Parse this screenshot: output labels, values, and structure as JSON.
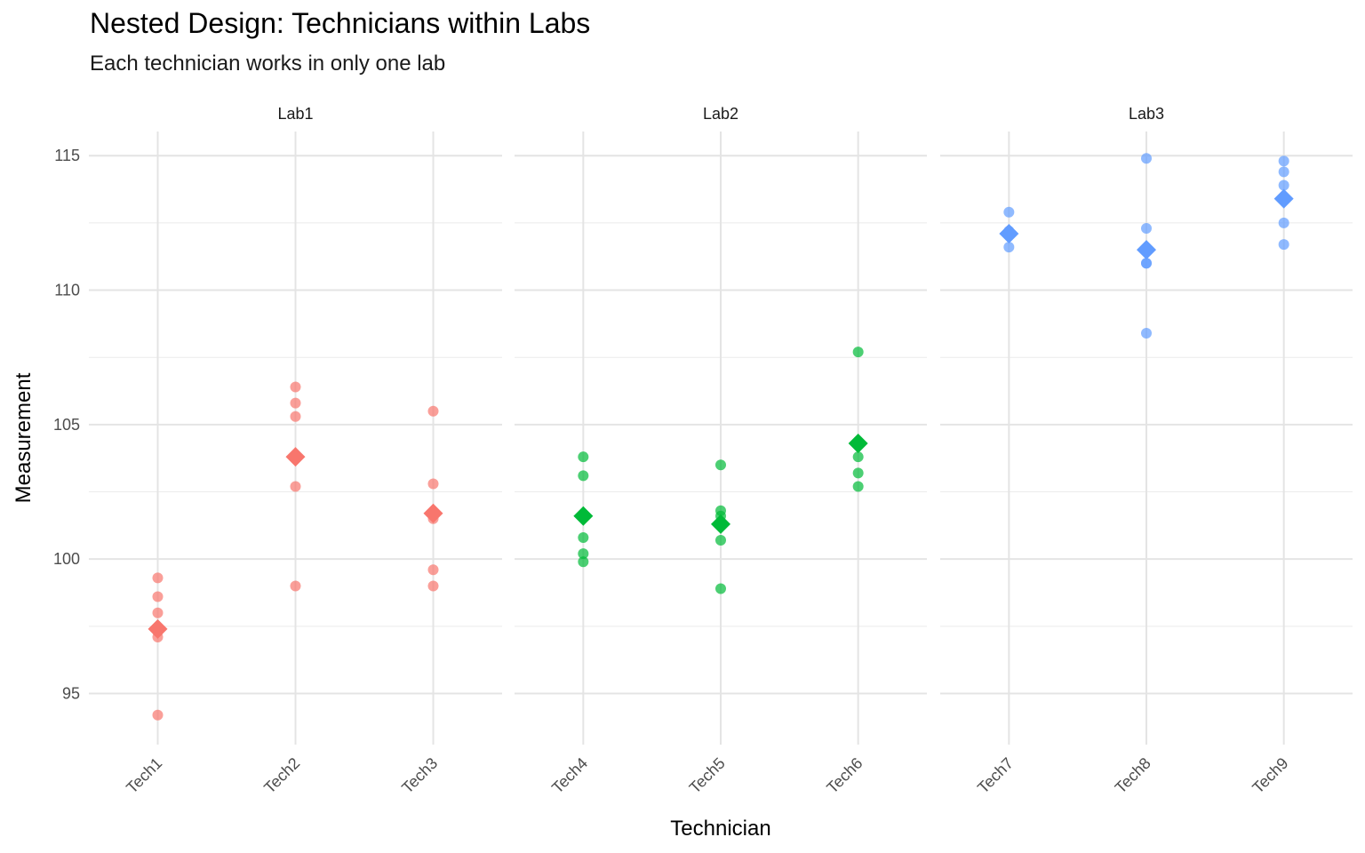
{
  "chart_data": {
    "type": "scatter",
    "title": "Nested Design: Technicians within Labs",
    "subtitle": "Each technician works in only one lab",
    "xlabel": "Technician",
    "ylabel": "Measurement",
    "yticks": [
      95,
      100,
      105,
      110,
      115
    ],
    "ylim": [
      93.1,
      115.9
    ],
    "grid": true,
    "legend": "none",
    "facets": [
      {
        "name": "Lab1",
        "color": "#F8766D",
        "technicians": [
          {
            "name": "Tech1",
            "values": [
              99.3,
              98.6,
              98.0,
              97.3,
              97.1,
              94.2
            ],
            "mean": 97.4
          },
          {
            "name": "Tech2",
            "values": [
              106.4,
              105.8,
              105.3,
              102.7,
              99.0
            ],
            "mean": 103.8
          },
          {
            "name": "Tech3",
            "values": [
              105.5,
              102.8,
              101.5,
              99.6,
              99.0
            ],
            "mean": 101.7
          }
        ]
      },
      {
        "name": "Lab2",
        "color": "#00BA38",
        "technicians": [
          {
            "name": "Tech4",
            "values": [
              103.8,
              103.1,
              100.8,
              100.2,
              99.9
            ],
            "mean": 101.6
          },
          {
            "name": "Tech5",
            "values": [
              103.5,
              101.8,
              101.6,
              100.7,
              98.9
            ],
            "mean": 101.3
          },
          {
            "name": "Tech6",
            "values": [
              107.7,
              103.8,
              103.2,
              102.7
            ],
            "mean": 104.3
          }
        ]
      },
      {
        "name": "Lab3",
        "color": "#619CFF",
        "technicians": [
          {
            "name": "Tech7",
            "values": [
              112.9,
              112.2,
              111.6
            ],
            "mean": 112.1
          },
          {
            "name": "Tech8",
            "values": [
              114.9,
              112.3,
              111.0,
              111.0,
              108.4
            ],
            "mean": 111.5
          },
          {
            "name": "Tech9",
            "values": [
              114.8,
              114.4,
              113.9,
              112.5,
              111.7
            ],
            "mean": 113.4
          }
        ]
      }
    ]
  }
}
